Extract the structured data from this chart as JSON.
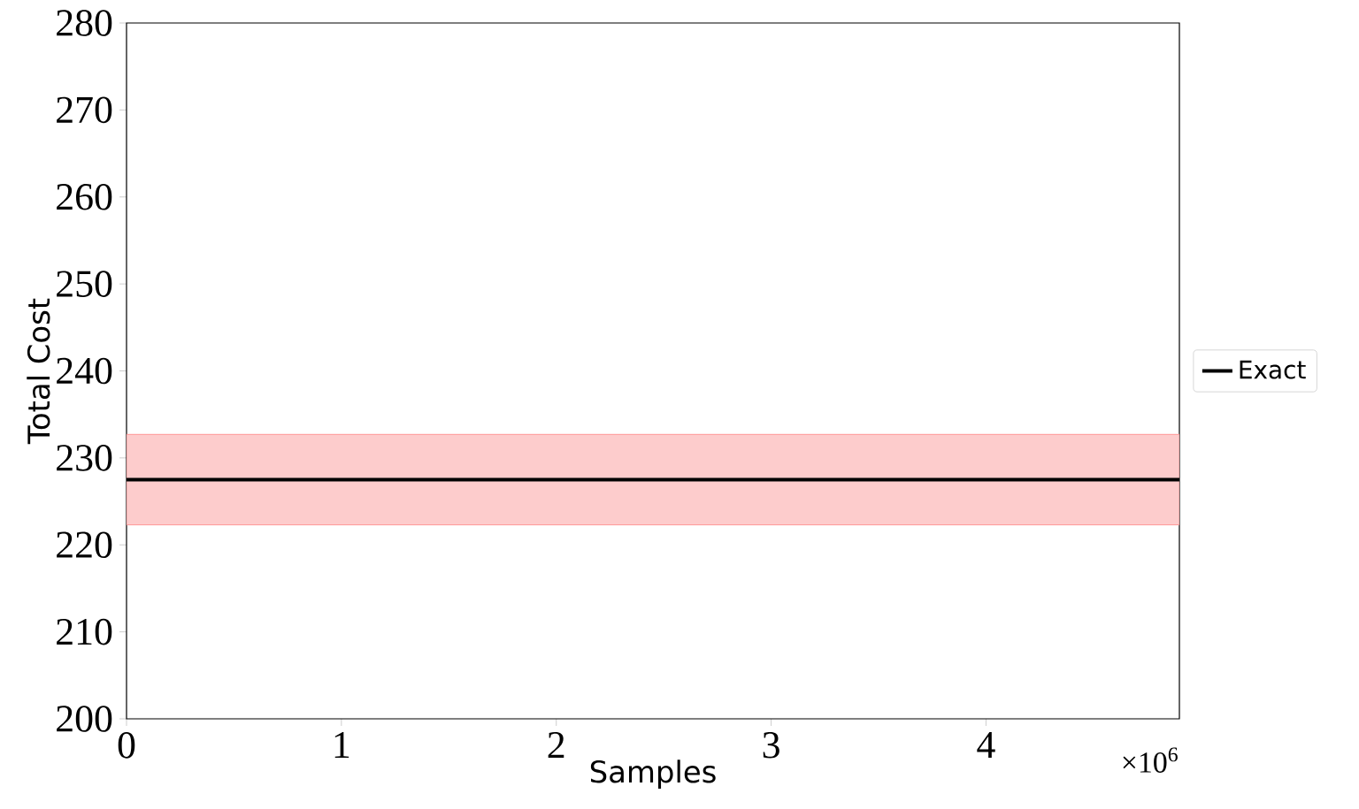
{
  "chart_data": {
    "type": "line",
    "xlabel": "Samples",
    "ylabel": "Total Cost",
    "xlim": [
      0,
      4.9
    ],
    "ylim": [
      200,
      280
    ],
    "xticks": [
      0,
      1,
      2,
      3,
      4
    ],
    "yticks": [
      200,
      210,
      220,
      230,
      240,
      250,
      260,
      270,
      280
    ],
    "annotations": [
      "×10$^{6}$"
    ],
    "legend": "right",
    "series": [
      {
        "name": "Exact",
        "color": "#000000",
        "x": [
          0,
          4.9
        ],
        "values": [
          227.5,
          227.5
        ],
        "lower": [
          222.3,
          222.3
        ],
        "upper": [
          232.7,
          232.7
        ]
      }
    ]
  }
}
